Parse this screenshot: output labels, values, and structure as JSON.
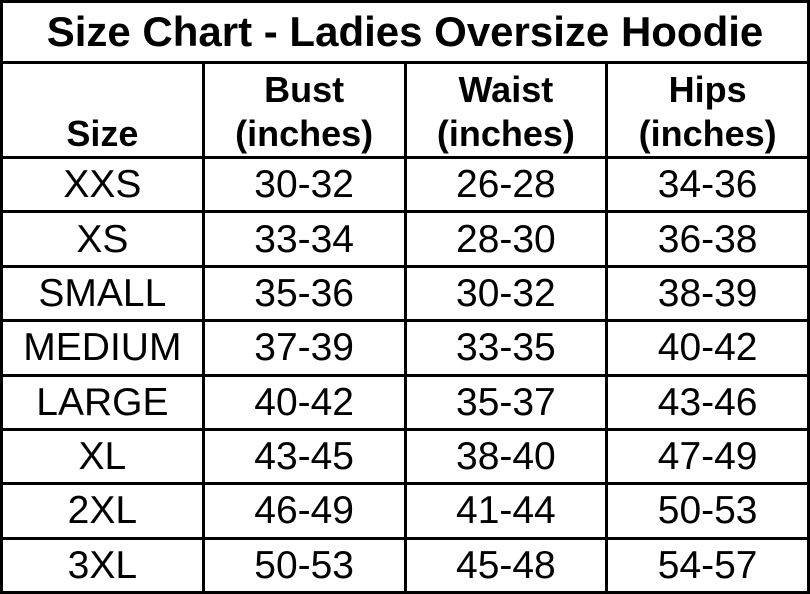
{
  "title": "Size Chart - Ladies Oversize Hoodie",
  "headers_display": [
    "Size",
    "Bust\n(inches)",
    "Waist\n(inches)",
    "Hips\n(inches)"
  ],
  "colors": {
    "border": "#000000",
    "background": "#ffffff",
    "text": "#000000"
  },
  "chart_data": {
    "type": "table",
    "title": "Size Chart - Ladies Oversize Hoodie",
    "columns": [
      "Size",
      "Bust (inches)",
      "Waist (inches)",
      "Hips (inches)"
    ],
    "rows": [
      [
        "XXS",
        "30-32",
        "26-28",
        "34-36"
      ],
      [
        "XS",
        "33-34",
        "28-30",
        "36-38"
      ],
      [
        "SMALL",
        "35-36",
        "30-32",
        "38-39"
      ],
      [
        "MEDIUM",
        "37-39",
        "33-35",
        "40-42"
      ],
      [
        "LARGE",
        "40-42",
        "35-37",
        "43-46"
      ],
      [
        "XL",
        "43-45",
        "38-40",
        "47-49"
      ],
      [
        "2XL",
        "46-49",
        "41-44",
        "50-53"
      ],
      [
        "3XL",
        "50-53",
        "45-48",
        "54-57"
      ]
    ]
  }
}
